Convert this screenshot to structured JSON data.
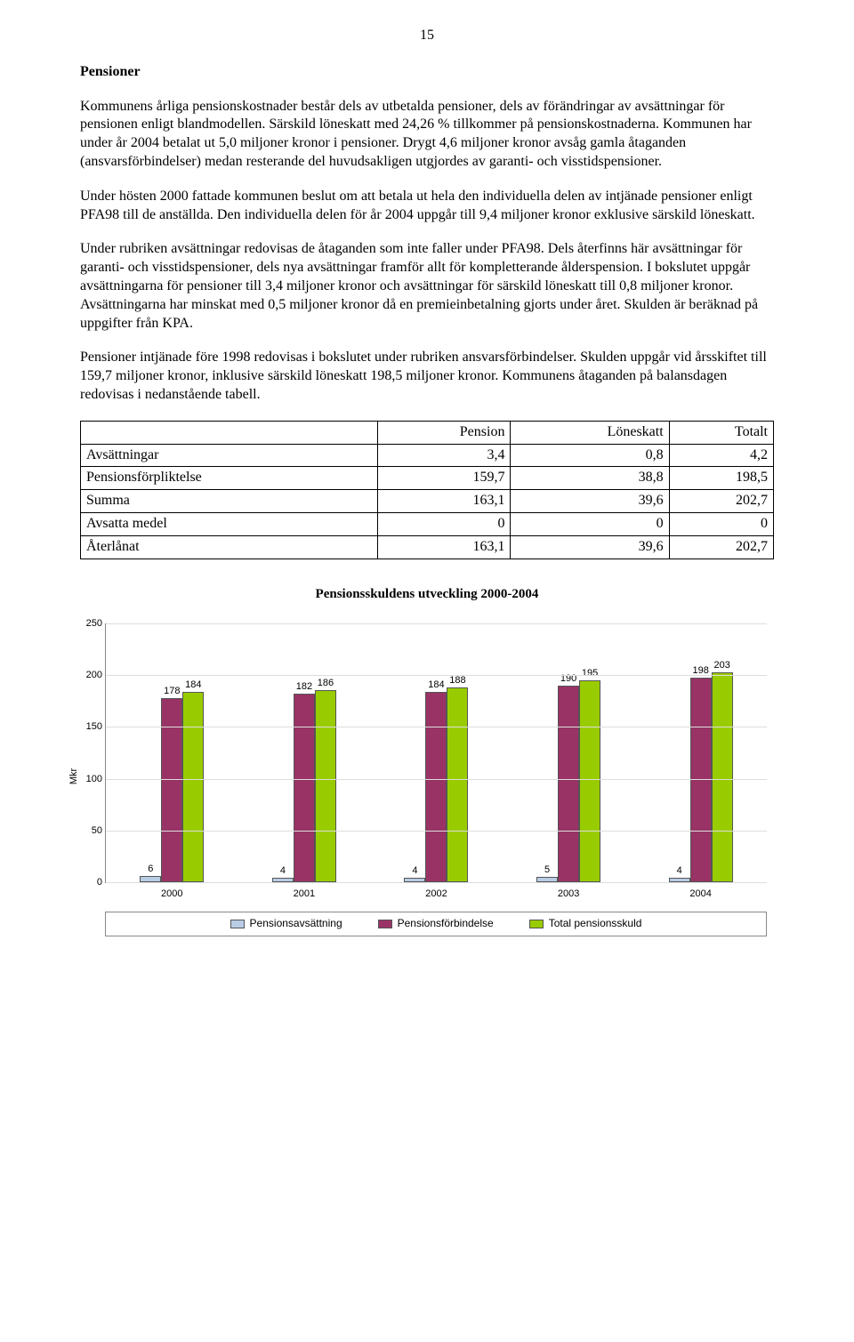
{
  "page_number": "15",
  "section_title": "Pensioner",
  "paragraphs": [
    "Kommunens årliga pensionskostnader består dels av utbetalda pensioner, dels av förändringar av avsättningar för pensionen enligt blandmodellen. Särskild löneskatt med 24,26 % tillkommer på pensionskostnaderna. Kommunen har under år 2004 betalat ut 5,0 miljoner kronor i pensioner. Drygt 4,6 miljoner kronor avsåg gamla åtaganden (ansvarsförbindelser) medan resterande del huvudsakligen utgjordes av garanti- och visstidspensioner.",
    "Under hösten 2000 fattade kommunen beslut om att betala ut hela den individuella delen av intjänade pensioner enligt PFA98 till de anställda. Den individuella delen för år 2004 uppgår till 9,4 miljoner kronor exklusive särskild löneskatt.",
    "Under rubriken avsättningar redovisas de åtaganden som inte faller under PFA98. Dels återfinns här avsättningar för garanti- och visstidspensioner, dels nya avsättningar framför allt för kompletterande ålderspension. I bokslutet uppgår avsättningarna för pensioner till 3,4 miljoner kronor och avsättningar för särskild löneskatt till 0,8 miljoner kronor. Avsättningarna har minskat med 0,5 miljoner kronor då en premieinbetalning gjorts under året. Skulden är beräknad på uppgifter från KPA.",
    "Pensioner intjänade före 1998 redovisas i bokslutet under rubriken ansvarsförbindelser. Skulden uppgår vid årsskiftet till 159,7 miljoner kronor, inklusive särskild löneskatt 198,5 miljoner kronor. Kommunens åtaganden på balansdagen redovisas i nedanstående tabell."
  ],
  "table": {
    "columns": [
      "",
      "Pension",
      "Löneskatt",
      "Totalt"
    ],
    "rows": [
      [
        "Avsättningar",
        "3,4",
        "0,8",
        "4,2"
      ],
      [
        "Pensionsförpliktelse",
        "159,7",
        "38,8",
        "198,5"
      ],
      [
        "Summa",
        "163,1",
        "39,6",
        "202,7"
      ],
      [
        "Avsatta medel",
        "0",
        "0",
        "0"
      ],
      [
        "Återlånat",
        "163,1",
        "39,6",
        "202,7"
      ]
    ]
  },
  "chart": {
    "title": "Pensionsskuldens utveckling 2000-2004",
    "type": "bar",
    "ylabel": "Mkr",
    "ymax": 250,
    "yticks": [
      0,
      50,
      100,
      150,
      200,
      250
    ],
    "categories": [
      "2000",
      "2001",
      "2002",
      "2003",
      "2004"
    ],
    "series": [
      {
        "name": "Pensionsavsättning",
        "color": "#b8cce4",
        "values": [
          6,
          4,
          4,
          5,
          4
        ]
      },
      {
        "name": "Pensionsförbindelse",
        "color": "#993366",
        "values": [
          178,
          182,
          184,
          190,
          198
        ]
      },
      {
        "name": "Total pensionsskuld",
        "color": "#99cc00",
        "values": [
          184,
          186,
          188,
          195,
          203
        ]
      }
    ],
    "legend": [
      "Pensionsavsättning",
      "Pensionsförbindelse",
      "Total pensionsskuld"
    ]
  }
}
